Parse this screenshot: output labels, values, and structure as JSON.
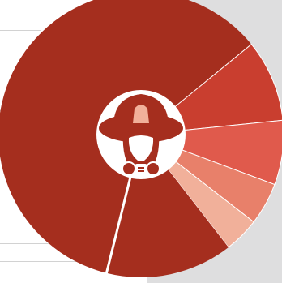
{
  "theme": {
    "panel_color": "#dededf",
    "guide_color": "#d2d2d2",
    "hub_color": "#ffffff",
    "emblem_primary": "#a52e1e",
    "emblem_accent": "#f1b09a"
  },
  "chart_data": {
    "type": "pie",
    "style": "donut",
    "title": "",
    "start_angle_deg": 194,
    "direction": "clockwise",
    "slices": [
      {
        "value": 60.2,
        "color": "#a52e1e"
      },
      {
        "value": 9.3,
        "color": "#c93e2f"
      },
      {
        "value": 7.3,
        "color": "#e05a4c"
      },
      {
        "value": 4.8,
        "color": "#e8806a"
      },
      {
        "value": 4.0,
        "color": "#f1b09a"
      },
      {
        "value": 14.4,
        "color": "#a52e1e"
      }
    ],
    "center_icon": "firefighter-helmet-gasmask-icon"
  }
}
